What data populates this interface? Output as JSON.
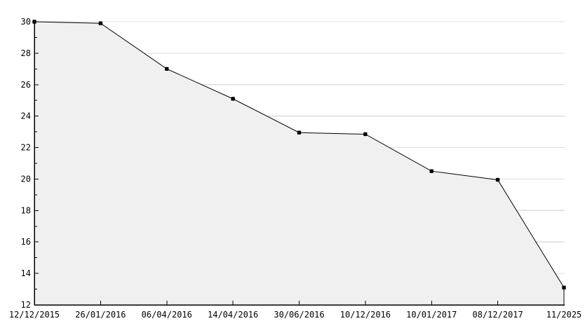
{
  "chart_data": {
    "type": "area",
    "title": "",
    "xlabel": "",
    "ylabel": "",
    "x_categories": [
      "12/12/2015",
      "26/01/2016",
      "06/04/2016",
      "14/04/2016",
      "30/06/2016",
      "10/12/2016",
      "10/01/2017",
      "08/12/2017",
      "11/2025"
    ],
    "series": [
      {
        "name": "value",
        "values": [
          30,
          29.9,
          27,
          25.1,
          22.95,
          22.85,
          20.5,
          19.95,
          13.1
        ]
      }
    ],
    "ylim": [
      12,
      30
    ],
    "y_major_tick_step": 2,
    "y_minor_tick_step": 1,
    "y_tick_labels": [
      "12",
      "14",
      "16",
      "18",
      "20",
      "22",
      "24",
      "26",
      "28",
      "30"
    ],
    "grid": true,
    "gridlines_at": [
      14,
      16,
      18,
      20,
      22,
      24,
      26,
      28,
      30
    ],
    "legend": "none",
    "marker": "filled-square",
    "tick_direction": "inward",
    "colors": {
      "line": "#000000",
      "marker": "#000000",
      "fill": "#f0f0f0",
      "grid": "#dcdcdc",
      "axis": "#000000",
      "background": "#ffffff",
      "text": "#000000"
    }
  }
}
